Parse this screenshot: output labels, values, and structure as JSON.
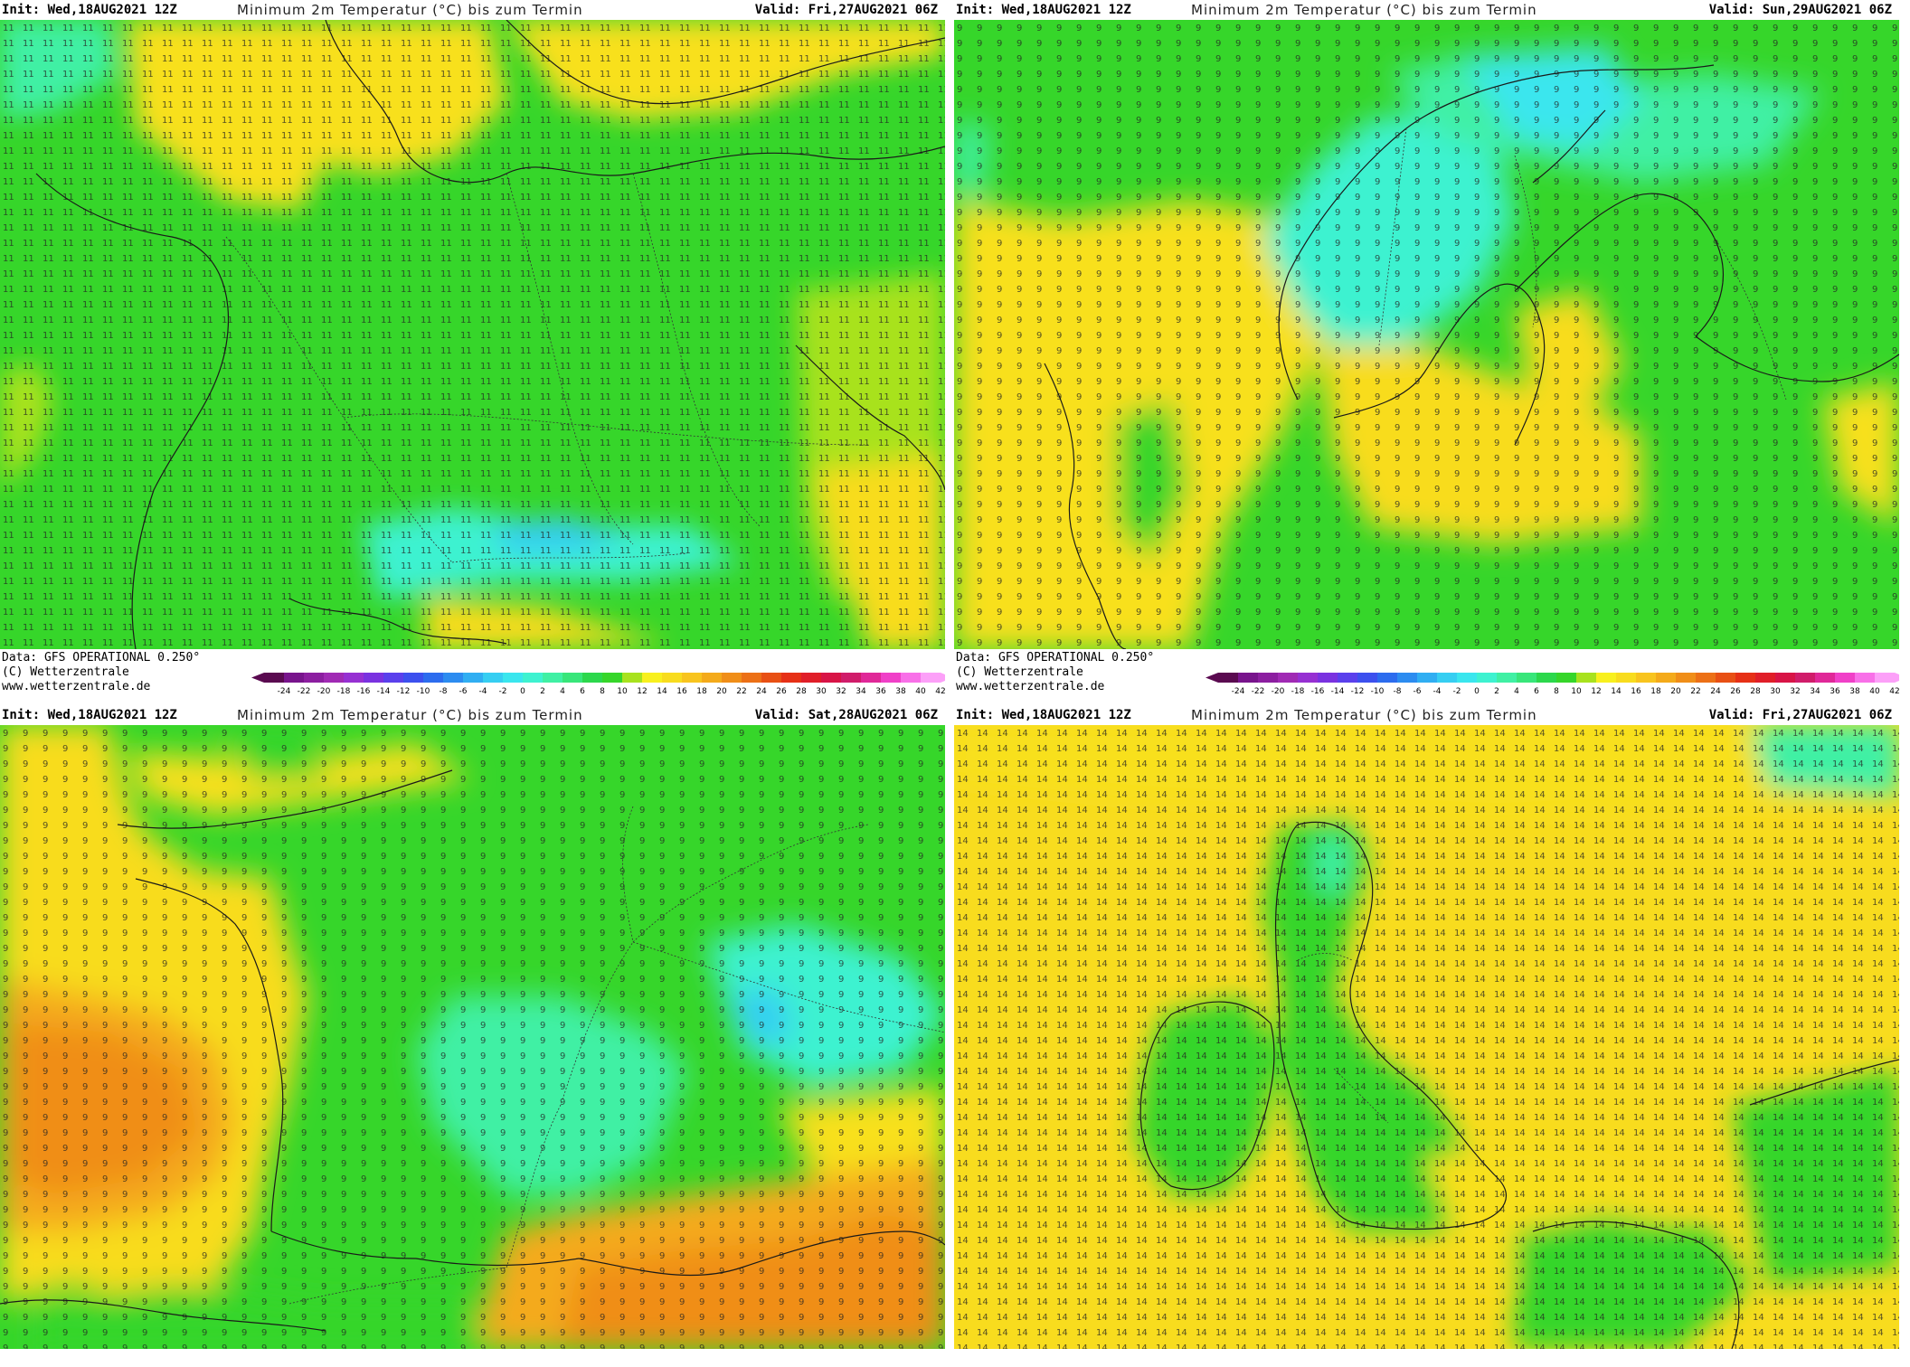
{
  "header": {
    "init": "Init: Wed,18AUG2021 12Z",
    "title": "Minimum 2m Temperatur (°C) bis zum Termin"
  },
  "credits": {
    "data": "Data: GFS OPERATIONAL 0.250°",
    "copyright": "(C) Wetterzentrale",
    "url": "www.wetterzentrale.de"
  },
  "legend": {
    "ticks": [
      "-24",
      "-22",
      "-20",
      "-18",
      "-16",
      "-14",
      "-12",
      "-10",
      "-8",
      "-6",
      "-4",
      "-2",
      "0",
      "2",
      "4",
      "6",
      "8",
      "10",
      "12",
      "14",
      "16",
      "18",
      "20",
      "22",
      "24",
      "26",
      "28",
      "30",
      "32",
      "34",
      "36",
      "38",
      "40",
      "42"
    ],
    "colors": [
      "#5a0a50",
      "#78148c",
      "#8c1ea0",
      "#a02ab4",
      "#9630d2",
      "#7a32e0",
      "#5a40ec",
      "#3c50ee",
      "#2c6cee",
      "#2c8cf0",
      "#30aef2",
      "#36cef2",
      "#3ae6ee",
      "#3ef2d0",
      "#40f0a4",
      "#38e67a",
      "#2cd84c",
      "#36d62a",
      "#a8e21e",
      "#f8f01e",
      "#f8dc1e",
      "#f8c41e",
      "#f4aa1a",
      "#f08e18",
      "#ec7016",
      "#e85014",
      "#e63016",
      "#e01e28",
      "#d81446",
      "#d01c6a",
      "#e02898",
      "#f040c8",
      "#f870e8",
      "#fca0f8"
    ]
  },
  "panels": [
    {
      "id": "central-europe",
      "valid": "Valid: Fri,27AUG2021 06Z"
    },
    {
      "id": "scandinavia",
      "valid": "Valid: Sun,29AUG2021 06Z"
    },
    {
      "id": "france",
      "valid": "Valid: Sat,28AUG2021 06Z"
    },
    {
      "id": "british-isles",
      "valid": "Valid: Fri,27AUG2021 06Z"
    }
  ]
}
